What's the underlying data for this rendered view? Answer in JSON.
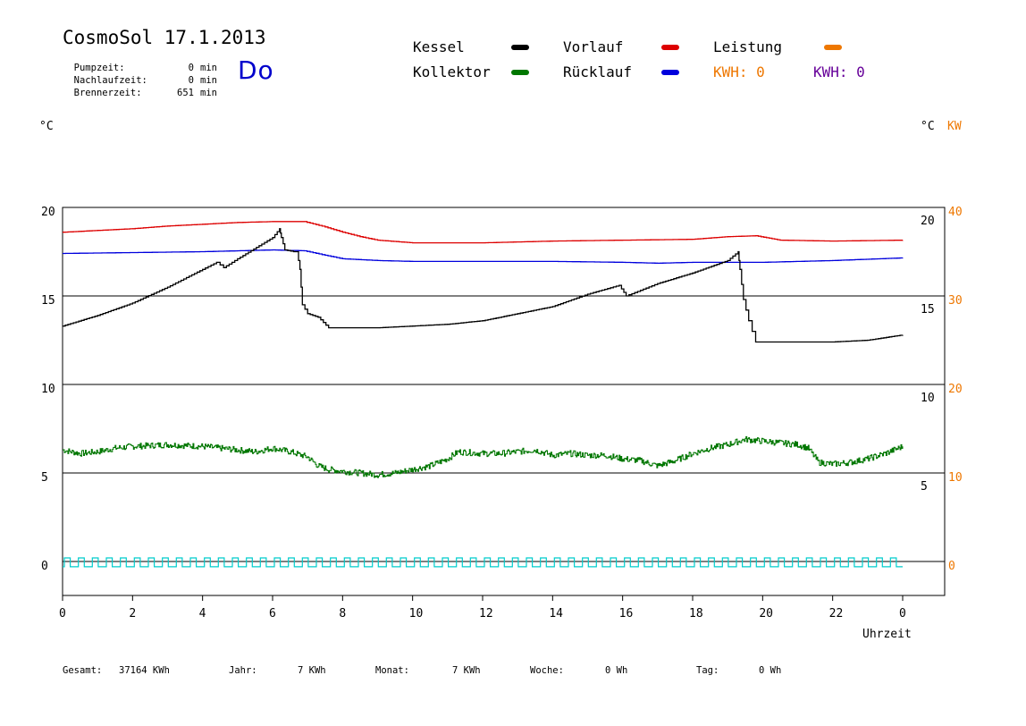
{
  "header": {
    "title": "CosmoSol 17.1.2013",
    "day": "Do",
    "info": [
      {
        "label": "Pumpzeit:",
        "value": "0",
        "unit": "min"
      },
      {
        "label": "Nachlaufzeit:",
        "value": "0",
        "unit": "min"
      },
      {
        "label": "Brennerzeit:",
        "value": "651",
        "unit": "min"
      }
    ]
  },
  "legend": {
    "kessel": {
      "label": "Kessel",
      "color": "#000000"
    },
    "vorlauf": {
      "label": "Vorlauf",
      "color": "#dd0000"
    },
    "leistung": {
      "label": "Leistung",
      "color": "#ee7700"
    },
    "kollektor": {
      "label": "Kollektor",
      "color": "#007700"
    },
    "ruecklauf": {
      "label": "Rücklauf",
      "color": "#0000dd"
    },
    "kwh1": {
      "label": "KWH: 0",
      "color": "#ee7700"
    },
    "kwh2": {
      "label": "KWH: 0",
      "color": "#660099"
    }
  },
  "units": {
    "left": "°C",
    "right_c": "°C",
    "right_kw": "KW"
  },
  "chart_data": {
    "type": "line",
    "xlabel": "Uhrzeit",
    "x_ticks": [
      "0",
      "2",
      "4",
      "6",
      "8",
      "10",
      "12",
      "14",
      "16",
      "18",
      "20",
      "22",
      "0"
    ],
    "y_left_ticks": [
      "20",
      "15",
      "10",
      "5",
      "0"
    ],
    "y_right_c_ticks": [
      "20",
      "15",
      "10",
      "5"
    ],
    "y_right_kw_ticks": [
      "40",
      "30",
      "20",
      "10",
      "0"
    ],
    "xlim": [
      0,
      24
    ],
    "ylim": [
      -1.7,
      20.3
    ],
    "upper_panel": {
      "ylim": [
        10,
        20
      ],
      "series": [
        {
          "key": "vorlauf",
          "name": "Vorlauf",
          "color": "#dd0000",
          "x": [
            0,
            1,
            2,
            3,
            4,
            5,
            6,
            6.9,
            7.5,
            8,
            8.5,
            9,
            10,
            12,
            14,
            16,
            18,
            19,
            19.8,
            20.5,
            22,
            24
          ],
          "y": [
            18.6,
            18.7,
            18.8,
            18.95,
            19.05,
            19.15,
            19.2,
            19.2,
            18.9,
            18.6,
            18.35,
            18.15,
            18.0,
            18.0,
            18.1,
            18.15,
            18.2,
            18.35,
            18.4,
            18.15,
            18.1,
            18.15
          ]
        },
        {
          "key": "ruecklauf",
          "name": "Rücklauf",
          "color": "#0000dd",
          "x": [
            0,
            2,
            4,
            5,
            6,
            6.9,
            7.5,
            8,
            9,
            10,
            12,
            14,
            16,
            17,
            18,
            20,
            22,
            24
          ],
          "y": [
            17.4,
            17.45,
            17.5,
            17.55,
            17.6,
            17.55,
            17.3,
            17.1,
            17.0,
            16.95,
            16.95,
            16.95,
            16.9,
            16.85,
            16.9,
            16.9,
            17.0,
            17.15
          ]
        },
        {
          "key": "kessel",
          "name": "Kessel",
          "color": "#000000",
          "x": [
            0,
            1,
            2,
            3,
            4,
            4.4,
            4.6,
            5,
            6,
            6.2,
            6.25,
            6.35,
            6.6,
            6.7,
            6.78,
            6.85,
            7.0,
            7.3,
            7.6,
            8,
            9,
            10,
            11,
            12,
            13,
            14,
            15,
            15.9,
            16.1,
            17,
            18,
            19,
            19.3,
            19.35,
            19.45,
            19.6,
            19.8,
            20,
            22,
            23,
            24
          ],
          "y": [
            13.3,
            13.9,
            14.6,
            15.5,
            16.5,
            16.9,
            16.6,
            17.1,
            18.3,
            18.8,
            18.3,
            17.6,
            17.5,
            17.5,
            16.5,
            14.5,
            14.0,
            13.8,
            13.2,
            13.2,
            13.2,
            13.3,
            13.4,
            13.6,
            14.0,
            14.4,
            15.1,
            15.6,
            15.0,
            15.7,
            16.3,
            17.0,
            17.5,
            16.5,
            14.8,
            13.6,
            12.4,
            12.4,
            12.4,
            12.5,
            12.8
          ]
        }
      ]
    },
    "middle_panel": {
      "ylim": [
        5,
        10
      ],
      "series": [
        {
          "key": "kollektor",
          "name": "Kollektor",
          "color": "#007700",
          "x": [
            0,
            0.5,
            1,
            1.5,
            2,
            3,
            4,
            4.5,
            5,
            5.5,
            6,
            6.5,
            7,
            7.3,
            7.6,
            8,
            8.5,
            9,
            9.5,
            10,
            10.5,
            11,
            11.3,
            12,
            12.5,
            13,
            13.5,
            14,
            14.5,
            15,
            15.5,
            16,
            16.5,
            17,
            17.5,
            18,
            18.5,
            19,
            19.5,
            20,
            20.5,
            21,
            21.3,
            21.6,
            22,
            22.5,
            23,
            23.5,
            24
          ],
          "y": [
            6.3,
            6.1,
            6.2,
            6.4,
            6.5,
            6.6,
            6.5,
            6.4,
            6.3,
            6.2,
            6.4,
            6.2,
            5.9,
            5.4,
            5.2,
            5.1,
            5.0,
            4.9,
            5.0,
            5.2,
            5.4,
            5.8,
            6.2,
            6.1,
            6.1,
            6.2,
            6.3,
            6.0,
            6.1,
            6.0,
            6.0,
            5.8,
            5.7,
            5.4,
            5.7,
            6.1,
            6.4,
            6.6,
            6.9,
            6.8,
            6.7,
            6.6,
            6.4,
            5.6,
            5.5,
            5.6,
            5.8,
            6.1,
            6.5
          ]
        }
      ]
    },
    "pump_signal": {
      "name": "Pumpe",
      "color": "#00cccc",
      "y_low": -0.3,
      "y_high": 0.2,
      "pulses": 60
    }
  },
  "footer": [
    {
      "label": "Gesamt:",
      "value": "37164 KWh"
    },
    {
      "label": "Jahr:",
      "value": "7 KWh"
    },
    {
      "label": "Monat:",
      "value": "7 KWh"
    },
    {
      "label": "Woche:",
      "value": "0 Wh"
    },
    {
      "label": "Tag:",
      "value": "0 Wh"
    }
  ]
}
